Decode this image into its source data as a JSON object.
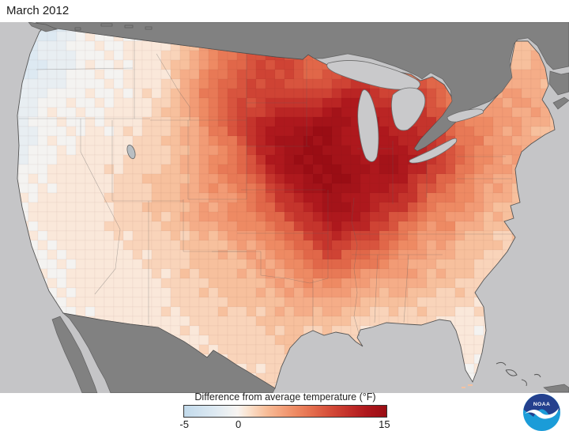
{
  "title": "March 2012",
  "legend": {
    "title": "Difference from average temperature (°F)",
    "min": -5,
    "max": 15,
    "ticks": [
      {
        "label": "-5",
        "percent": 0
      },
      {
        "label": "0",
        "percent": 27
      },
      {
        "label": "15",
        "percent": 100
      }
    ],
    "stops": [
      [
        -5,
        "#c2daeb"
      ],
      [
        -2,
        "#dde9f2"
      ],
      [
        -0.5,
        "#eef1f2"
      ],
      [
        0.3,
        "#f8f4f1"
      ],
      [
        1.2,
        "#fae5d3"
      ],
      [
        2.2,
        "#f9d0b4"
      ],
      [
        3.2,
        "#f7bc97"
      ],
      [
        4.5,
        "#f4a47e"
      ],
      [
        6,
        "#ee8a63"
      ],
      [
        7.5,
        "#e5704f"
      ],
      [
        9.5,
        "#d44b38"
      ],
      [
        11.5,
        "#c02c28"
      ],
      [
        13,
        "#ae181d"
      ],
      [
        15,
        "#9a0d14"
      ]
    ]
  },
  "logo": {
    "text": "NOAA",
    "navy": "#24408e",
    "cyan": "#1b9cd8"
  },
  "map": {
    "description": "Contiguous United States temperature anomaly, March 2012; warmest anomalies (up to +15°F) across the upper Midwest, slightly cool along the Pacific Northwest coast",
    "water_color": "#c5c5c7",
    "foreign_land_color": "#818181",
    "lake_color": "#c9c9cb",
    "cell_size": 24,
    "levels": {
      "a": -2.2,
      "b": -1.0,
      "c": 0.3,
      "d": 1.2,
      "e": 2.2,
      "f": 3.2,
      "g": 4.5,
      "h": 6.0,
      "i": 7.5,
      "j": 9.5,
      "k": 11.5,
      "l": 13.0,
      "m": 14.5
    },
    "grid": [
      "bbabccccdefghiijiiihhhhgggffff",
      "babbcccddeghijjjiiihhhhggfffff",
      "babbcccddfgiijjjijjihhihggffgf",
      "bbbccccddfhijjjjjjkkjjjihgggff",
      "bbccccddefhijjkkkllkkkjihggggf",
      "bbccccddefgijkllmmlllkkjhhggff",
      "bbccdddeefghiklmmmllllkjihggff",
      "bccddddeefghijlmmmmlmlkjihggff",
      "cccdddeeffghhiklmmmllkjihggfff",
      "ccddddeeffgghijklmllkkihhgfffe",
      "ccddddeeefgghhijkllkjihhgffeee",
      "cccddddeeeffgghijkjjihggffeeee",
      "ccccddddeefffgghijiihggffeeedd",
      "ccccdddddeefffgghhhgggffeeeddd",
      "ccccdddddeeefffggggfffeeeddddd",
      "cccccdddddeeeefffffeeeeddddddd",
      "ccccccdddddeeeefeeeddddddccccc",
      "cccccccdddddeeeeeedddddddccccc",
      "ccccccccccccddedddddddddcccccc",
      "ccccccccccccddddcccccccccccccc"
    ]
  }
}
